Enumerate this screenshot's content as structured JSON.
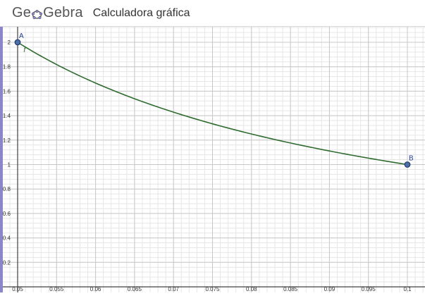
{
  "header": {
    "logo_text_1": "Ge",
    "logo_text_2": "Gebra",
    "logo_icon": "geogebra-ellipse-logo",
    "app_title": "Calculadora gráfica"
  },
  "colors": {
    "curve": "#2f6b2f",
    "point_fill": "#4d6fa8",
    "point_stroke": "#1f3b6b",
    "label": "#1f3b8a",
    "grid_minor": "#e6e6e6",
    "grid_major": "#c8c8c8",
    "axis": "#404040",
    "left_bar": "#8a86c9"
  },
  "graph": {
    "x_ticks": [
      "0.05",
      "0.055",
      "0.06",
      "0.065",
      "0.07",
      "0.075",
      "0.08",
      "0.085",
      "0.09",
      "0.095",
      "0.1"
    ],
    "y_ticks": [
      "0.2",
      "0.4",
      "0.6",
      "0.8",
      "1",
      "1.2",
      "1.4",
      "1.6",
      "1.8",
      "2"
    ],
    "points": [
      {
        "label": "A",
        "x": 0.05,
        "y": 2
      },
      {
        "label": "B",
        "x": 0.1,
        "y": 1
      }
    ],
    "curve": {
      "expression": "0.1 / x",
      "x_from": 0.05,
      "x_to": 0.1
    },
    "curve_label": "f"
  }
}
